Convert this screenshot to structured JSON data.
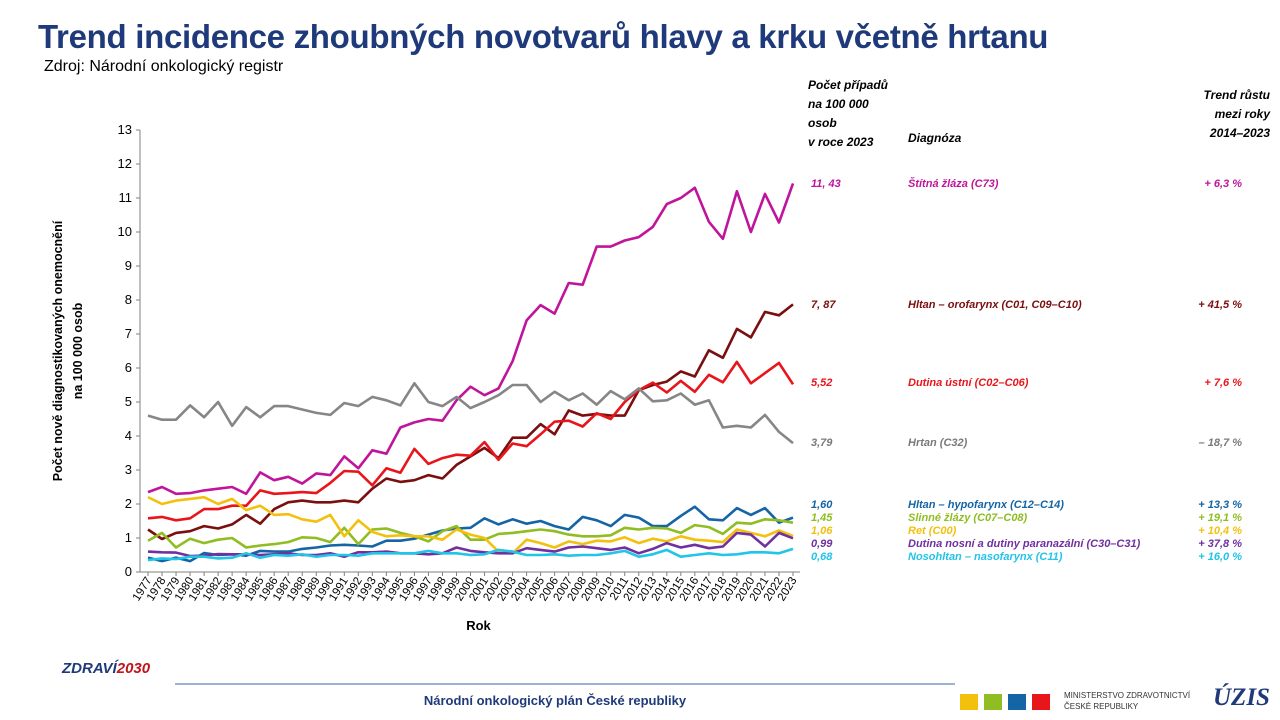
{
  "title": "Trend incidence zhoubných novotvarů hlavy a krku včetně hrtanu",
  "source": "Zdroj: Národní onkologický registr",
  "table_headers": {
    "count_lines": [
      "Počet případů",
      "na 100 000",
      "osob",
      "v roce 2023"
    ],
    "diagnosis": "Diagnóza",
    "trend_lines": [
      "Trend růstu",
      "mezi roky",
      "2014–2023"
    ]
  },
  "footer": {
    "text": "Národní onkologický plán České republiky",
    "zdravi_text": "ZDRAVÍ",
    "zdravi_num": "2030",
    "ministry_lines": [
      "MINISTERSTVO ZDRAVOTNICTVÍ",
      "ČESKÉ REPUBLIKY"
    ],
    "uzis": "ÚZIS"
  },
  "chart_data": {
    "type": "line",
    "xlabel": "Rok",
    "ylabel_lines": [
      "Počet nově diagnostikovaných onemocnění",
      "na 100 000 osob"
    ],
    "ylim": [
      0,
      13
    ],
    "yticks": [
      0,
      1,
      2,
      3,
      4,
      5,
      6,
      7,
      8,
      9,
      10,
      11,
      12,
      13
    ],
    "x": [
      1977,
      1978,
      1979,
      1980,
      1981,
      1982,
      1983,
      1984,
      1985,
      1986,
      1987,
      1988,
      1989,
      1990,
      1991,
      1992,
      1993,
      1994,
      1995,
      1996,
      1997,
      1998,
      1999,
      2000,
      2001,
      2002,
      2003,
      2004,
      2005,
      2006,
      2007,
      2008,
      2009,
      2010,
      2011,
      2012,
      2013,
      2014,
      2015,
      2016,
      2017,
      2018,
      2019,
      2020,
      2021,
      2022,
      2023
    ],
    "grid": false,
    "series": [
      {
        "name": "Štítná žláza (C73)",
        "value_2023": "11, 43",
        "trend": "+ 6,3 %",
        "color": "#c0159a",
        "values": [
          2.35,
          2.5,
          2.3,
          2.32,
          2.4,
          2.45,
          2.5,
          2.3,
          2.93,
          2.7,
          2.8,
          2.6,
          2.9,
          2.85,
          3.4,
          3.05,
          3.58,
          3.48,
          4.25,
          4.4,
          4.5,
          4.45,
          5.05,
          5.45,
          5.2,
          5.4,
          6.2,
          7.4,
          7.85,
          7.6,
          8.5,
          8.45,
          9.57,
          9.57,
          9.75,
          9.85,
          10.15,
          10.82,
          11.0,
          11.3,
          10.3,
          9.8,
          11.2,
          10.0,
          11.12,
          10.28,
          11.43
        ]
      },
      {
        "name": "Hltan – orofarynx (C01, C09–C10)",
        "value_2023": "7, 87",
        "trend": "+ 41,5 %",
        "color": "#7b0e0e",
        "values": [
          1.25,
          0.97,
          1.15,
          1.2,
          1.35,
          1.28,
          1.4,
          1.68,
          1.42,
          1.85,
          2.05,
          2.1,
          2.05,
          2.05,
          2.1,
          2.05,
          2.45,
          2.75,
          2.65,
          2.7,
          2.85,
          2.75,
          3.15,
          3.4,
          3.65,
          3.35,
          3.95,
          3.95,
          4.35,
          4.05,
          4.75,
          4.6,
          4.65,
          4.6,
          4.6,
          5.35,
          5.5,
          5.6,
          5.9,
          5.75,
          6.52,
          6.3,
          7.15,
          6.9,
          7.65,
          7.55,
          7.87
        ]
      },
      {
        "name": "Dutina ústní (C02–C06)",
        "value_2023": "5,52",
        "trend": "+ 7,6 %",
        "color": "#e8151b",
        "values": [
          1.58,
          1.62,
          1.52,
          1.58,
          1.85,
          1.85,
          1.95,
          1.95,
          2.4,
          2.3,
          2.32,
          2.35,
          2.32,
          2.62,
          2.97,
          2.95,
          2.55,
          3.05,
          2.92,
          3.62,
          3.18,
          3.35,
          3.45,
          3.42,
          3.82,
          3.3,
          3.78,
          3.7,
          4.05,
          4.42,
          4.45,
          4.28,
          4.67,
          4.5,
          5.0,
          5.35,
          5.57,
          5.28,
          5.62,
          5.3,
          5.8,
          5.58,
          6.18,
          5.55,
          5.85,
          6.15,
          5.52
        ]
      },
      {
        "name": "Hrtan (C32)",
        "value_2023": "3,79",
        "trend": "– 18,7 %",
        "color": "#868686",
        "values": [
          4.6,
          4.48,
          4.48,
          4.9,
          4.55,
          5.0,
          4.3,
          4.85,
          4.55,
          4.88,
          4.88,
          4.78,
          4.68,
          4.62,
          4.97,
          4.88,
          5.15,
          5.05,
          4.9,
          5.55,
          5.0,
          4.88,
          5.15,
          4.82,
          5.0,
          5.2,
          5.5,
          5.5,
          5.0,
          5.3,
          5.05,
          5.25,
          4.92,
          5.32,
          5.08,
          5.4,
          5.02,
          5.05,
          5.25,
          4.92,
          5.05,
          4.25,
          4.3,
          4.25,
          4.62,
          4.12,
          3.79
        ]
      },
      {
        "name": "Hltan – hypofarynx (C12–C14)",
        "value_2023": "1,60",
        "trend": "+ 13,3 %",
        "color": "#1464a6",
        "values": [
          0.42,
          0.32,
          0.42,
          0.32,
          0.56,
          0.5,
          0.52,
          0.48,
          0.62,
          0.6,
          0.6,
          0.68,
          0.72,
          0.78,
          0.8,
          0.78,
          0.75,
          0.92,
          0.92,
          0.98,
          1.1,
          1.22,
          1.28,
          1.3,
          1.58,
          1.4,
          1.55,
          1.42,
          1.5,
          1.35,
          1.25,
          1.62,
          1.52,
          1.35,
          1.68,
          1.6,
          1.35,
          1.35,
          1.65,
          1.92,
          1.55,
          1.52,
          1.88,
          1.68,
          1.88,
          1.45,
          1.6
        ]
      },
      {
        "name": "Slinné žlázy (C07–C08)",
        "value_2023": "1,45",
        "trend": "+ 19,1 %",
        "color": "#8fbd22",
        "values": [
          0.92,
          1.15,
          0.72,
          0.98,
          0.85,
          0.95,
          1.0,
          0.72,
          0.78,
          0.82,
          0.88,
          1.02,
          1.0,
          0.88,
          1.3,
          0.82,
          1.25,
          1.28,
          1.15,
          1.05,
          0.9,
          1.2,
          1.35,
          0.95,
          0.95,
          1.12,
          1.15,
          1.2,
          1.25,
          1.2,
          1.1,
          1.05,
          1.05,
          1.08,
          1.3,
          1.25,
          1.3,
          1.28,
          1.15,
          1.38,
          1.32,
          1.12,
          1.45,
          1.42,
          1.55,
          1.52,
          1.45
        ]
      },
      {
        "name": "Ret (C00)",
        "value_2023": "1,06",
        "trend": "+ 10,4 %",
        "color": "#f4c00e",
        "values": [
          2.2,
          2.0,
          2.1,
          2.15,
          2.2,
          2.0,
          2.15,
          1.82,
          1.95,
          1.68,
          1.7,
          1.55,
          1.48,
          1.68,
          1.05,
          1.52,
          1.18,
          1.05,
          1.08,
          1.05,
          1.05,
          0.95,
          1.25,
          1.1,
          1.0,
          0.6,
          0.55,
          0.95,
          0.85,
          0.72,
          0.9,
          0.82,
          0.92,
          0.9,
          1.02,
          0.85,
          0.98,
          0.9,
          1.05,
          0.95,
          0.92,
          0.88,
          1.25,
          1.15,
          1.05,
          1.22,
          1.06
        ]
      },
      {
        "name": "Dutina nosní a dutiny paranazální (C30–C31)",
        "value_2023": "0,99",
        "trend": "+ 37,8 %",
        "color": "#7030a0",
        "values": [
          0.6,
          0.58,
          0.57,
          0.47,
          0.48,
          0.53,
          0.52,
          0.52,
          0.5,
          0.52,
          0.55,
          0.5,
          0.5,
          0.55,
          0.45,
          0.58,
          0.58,
          0.6,
          0.55,
          0.55,
          0.52,
          0.55,
          0.72,
          0.62,
          0.58,
          0.55,
          0.55,
          0.7,
          0.65,
          0.6,
          0.72,
          0.75,
          0.7,
          0.65,
          0.72,
          0.55,
          0.68,
          0.85,
          0.72,
          0.8,
          0.7,
          0.75,
          1.15,
          1.1,
          0.75,
          1.15,
          0.99
        ]
      },
      {
        "name": "Nosohltan – nasofarynx (C11)",
        "value_2023": "0,68",
        "trend": "+ 16,0 %",
        "color": "#22c4e8",
        "values": [
          0.35,
          0.4,
          0.38,
          0.45,
          0.45,
          0.4,
          0.42,
          0.55,
          0.42,
          0.5,
          0.48,
          0.52,
          0.45,
          0.5,
          0.5,
          0.48,
          0.55,
          0.55,
          0.55,
          0.55,
          0.62,
          0.55,
          0.55,
          0.5,
          0.52,
          0.65,
          0.6,
          0.5,
          0.5,
          0.52,
          0.48,
          0.5,
          0.5,
          0.55,
          0.62,
          0.45,
          0.52,
          0.65,
          0.45,
          0.5,
          0.55,
          0.5,
          0.52,
          0.58,
          0.58,
          0.55,
          0.68
        ]
      }
    ]
  }
}
